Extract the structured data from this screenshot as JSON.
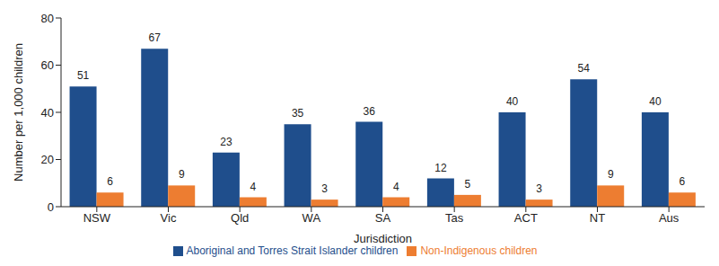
{
  "chart_data": {
    "type": "bar",
    "categories": [
      "NSW",
      "Vic",
      "Qld",
      "WA",
      "SA",
      "Tas",
      "ACT",
      "NT",
      "Aus"
    ],
    "series": [
      {
        "name": "Aboriginal and Torres Strait Islander children",
        "color": "#1f4e8c",
        "values": [
          51,
          67,
          23,
          35,
          36,
          12,
          40,
          54,
          40
        ]
      },
      {
        "name": "Non-Indigenous children",
        "color": "#ed7d31",
        "values": [
          6,
          9,
          4,
          3,
          4,
          5,
          3,
          9,
          6
        ]
      }
    ],
    "x_label": "Jurisdiction",
    "y_label": "Number per 1,000 children",
    "ylim": [
      0,
      80
    ],
    "yticks": [
      0,
      20,
      40,
      60,
      80
    ],
    "grid": false,
    "legend": "bottom",
    "data_labels": true
  }
}
